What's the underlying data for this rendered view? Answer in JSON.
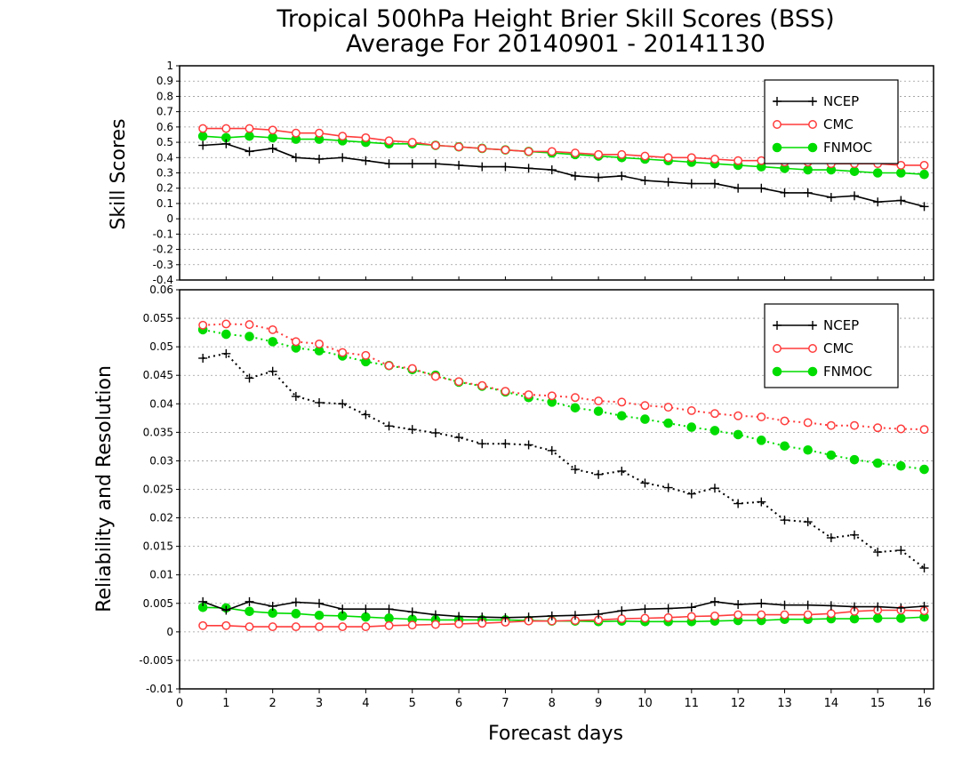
{
  "title": {
    "line1": "Tropical 500hPa Height Brier Skill Scores (BSS)",
    "line2": "Average For 20140901 - 20141130"
  },
  "colors": {
    "NCEP": "#000000",
    "CMC": "#ff3c3c",
    "FNMOC": "#00dc00",
    "grid": "#999999"
  },
  "chart_data": [
    {
      "type": "line",
      "panel": "top",
      "ylabel": "Skill Scores",
      "ylim": [
        -0.4,
        1
      ],
      "yticks": [
        "-0.4",
        "-0.3",
        "-0.2",
        "-0.1",
        "0",
        "0.1",
        "0.2",
        "0.3",
        "0.4",
        "0.5",
        "0.6",
        "0.7",
        "0.8",
        "0.9",
        "1"
      ],
      "xlim": [
        0,
        16.2
      ],
      "grid": true,
      "legend_position": "top-right",
      "x": [
        0.5,
        1,
        1.5,
        2,
        2.5,
        3,
        3.5,
        4,
        4.5,
        5,
        5.5,
        6,
        6.5,
        7,
        7.5,
        8,
        8.5,
        9,
        9.5,
        10,
        10.5,
        11,
        11.5,
        12,
        12.5,
        13,
        13.5,
        14,
        14.5,
        15,
        15.5,
        16
      ],
      "series": [
        {
          "name": "NCEP",
          "marker": "plus",
          "values": [
            0.48,
            0.49,
            0.44,
            0.46,
            0.4,
            0.39,
            0.4,
            0.38,
            0.36,
            0.36,
            0.36,
            0.35,
            0.34,
            0.34,
            0.33,
            0.32,
            0.28,
            0.27,
            0.28,
            0.25,
            0.24,
            0.23,
            0.23,
            0.2,
            0.2,
            0.17,
            0.17,
            0.14,
            0.15,
            0.11,
            0.12,
            0.08
          ]
        },
        {
          "name": "CMC",
          "marker": "open-circle",
          "values": [
            0.59,
            0.59,
            0.59,
            0.58,
            0.56,
            0.56,
            0.54,
            0.53,
            0.51,
            0.5,
            0.48,
            0.47,
            0.46,
            0.45,
            0.44,
            0.44,
            0.43,
            0.42,
            0.42,
            0.41,
            0.4,
            0.4,
            0.39,
            0.38,
            0.38,
            0.37,
            0.37,
            0.36,
            0.36,
            0.36,
            0.35,
            0.35
          ]
        },
        {
          "name": "FNMOC",
          "marker": "filled-circle",
          "values": [
            0.54,
            0.53,
            0.54,
            0.53,
            0.52,
            0.52,
            0.51,
            0.5,
            0.49,
            0.49,
            0.48,
            0.47,
            0.46,
            0.45,
            0.44,
            0.43,
            0.42,
            0.41,
            0.4,
            0.39,
            0.38,
            0.37,
            0.36,
            0.35,
            0.34,
            0.33,
            0.32,
            0.32,
            0.31,
            0.3,
            0.3,
            0.29
          ]
        }
      ]
    },
    {
      "type": "line",
      "panel": "bottom",
      "ylabel": "Reliability and Resolution",
      "xlabel": "Forecast days",
      "ylim": [
        -0.01,
        0.06
      ],
      "yticks": [
        "-0.01",
        "-0.005",
        "0",
        "0.005",
        "0.01",
        "0.015",
        "0.02",
        "0.025",
        "0.03",
        "0.035",
        "0.04",
        "0.045",
        "0.05",
        "0.055",
        "0.06"
      ],
      "xlim": [
        0,
        16.2
      ],
      "xticks": [
        "0",
        "1",
        "2",
        "3",
        "4",
        "5",
        "6",
        "7",
        "8",
        "9",
        "10",
        "11",
        "12",
        "13",
        "14",
        "15",
        "16"
      ],
      "grid": true,
      "legend_position": "top-right",
      "x": [
        0.5,
        1,
        1.5,
        2,
        2.5,
        3,
        3.5,
        4,
        4.5,
        5,
        5.5,
        6,
        6.5,
        7,
        7.5,
        8,
        8.5,
        9,
        9.5,
        10,
        10.5,
        11,
        11.5,
        12,
        12.5,
        13,
        13.5,
        14,
        14.5,
        15,
        15.5,
        16
      ],
      "series": [
        {
          "name": "NCEP",
          "marker": "plus",
          "metric": "resolution",
          "style": "dotted",
          "values": [
            0.048,
            0.0488,
            0.0445,
            0.0457,
            0.0413,
            0.0402,
            0.04,
            0.0381,
            0.0361,
            0.0355,
            0.0349,
            0.0341,
            0.033,
            0.033,
            0.0328,
            0.0318,
            0.0285,
            0.0276,
            0.0282,
            0.0261,
            0.0253,
            0.0242,
            0.0252,
            0.0225,
            0.0228,
            0.0196,
            0.0193,
            0.0165,
            0.017,
            0.014,
            0.0143,
            0.0112
          ]
        },
        {
          "name": "CMC",
          "marker": "open-circle",
          "metric": "resolution",
          "style": "dotted",
          "values": [
            0.0538,
            0.054,
            0.0539,
            0.053,
            0.0509,
            0.0505,
            0.049,
            0.0485,
            0.0467,
            0.0462,
            0.0448,
            0.0439,
            0.0432,
            0.0422,
            0.0416,
            0.0414,
            0.0411,
            0.0405,
            0.0403,
            0.0397,
            0.0394,
            0.0388,
            0.0383,
            0.0379,
            0.0377,
            0.037,
            0.0367,
            0.0362,
            0.0362,
            0.0358,
            0.0356,
            0.0355
          ]
        },
        {
          "name": "FNMOC",
          "marker": "filled-circle",
          "metric": "resolution",
          "style": "dotted",
          "values": [
            0.053,
            0.0522,
            0.0518,
            0.0509,
            0.0498,
            0.0493,
            0.0484,
            0.0474,
            0.0467,
            0.046,
            0.045,
            0.0438,
            0.0431,
            0.0421,
            0.0411,
            0.0403,
            0.0393,
            0.0387,
            0.0379,
            0.0373,
            0.0366,
            0.0359,
            0.0353,
            0.0346,
            0.0336,
            0.0326,
            0.0319,
            0.031,
            0.0302,
            0.0296,
            0.0291,
            0.0285
          ]
        },
        {
          "name": "NCEP",
          "marker": "plus",
          "metric": "reliability",
          "style": "solid",
          "values": [
            0.0053,
            0.0038,
            0.0053,
            0.0045,
            0.0052,
            0.005,
            0.004,
            0.004,
            0.004,
            0.0035,
            0.003,
            0.0027,
            0.0026,
            0.0025,
            0.0026,
            0.0028,
            0.0029,
            0.0031,
            0.0037,
            0.004,
            0.0041,
            0.0043,
            0.0053,
            0.0048,
            0.005,
            0.0047,
            0.0047,
            0.0046,
            0.0044,
            0.0044,
            0.0042,
            0.0045
          ]
        },
        {
          "name": "CMC",
          "marker": "open-circle",
          "metric": "reliability",
          "style": "solid",
          "values": [
            0.0011,
            0.0011,
            0.0009,
            0.0009,
            0.0009,
            0.0009,
            0.0009,
            0.0009,
            0.0011,
            0.0012,
            0.0013,
            0.0014,
            0.0015,
            0.0017,
            0.0019,
            0.0019,
            0.002,
            0.0021,
            0.0023,
            0.0024,
            0.0025,
            0.0027,
            0.0028,
            0.003,
            0.003,
            0.003,
            0.003,
            0.0032,
            0.0036,
            0.0038,
            0.0038,
            0.0037
          ]
        },
        {
          "name": "FNMOC",
          "marker": "filled-circle",
          "metric": "reliability",
          "style": "solid",
          "values": [
            0.0043,
            0.0042,
            0.0036,
            0.0033,
            0.0032,
            0.0029,
            0.0028,
            0.0026,
            0.0024,
            0.0022,
            0.0021,
            0.0021,
            0.0021,
            0.0021,
            0.002,
            0.0019,
            0.0019,
            0.0018,
            0.0019,
            0.0018,
            0.0018,
            0.0018,
            0.0019,
            0.002,
            0.002,
            0.0022,
            0.0022,
            0.0023,
            0.0023,
            0.0024,
            0.0024,
            0.0026
          ]
        }
      ]
    }
  ]
}
